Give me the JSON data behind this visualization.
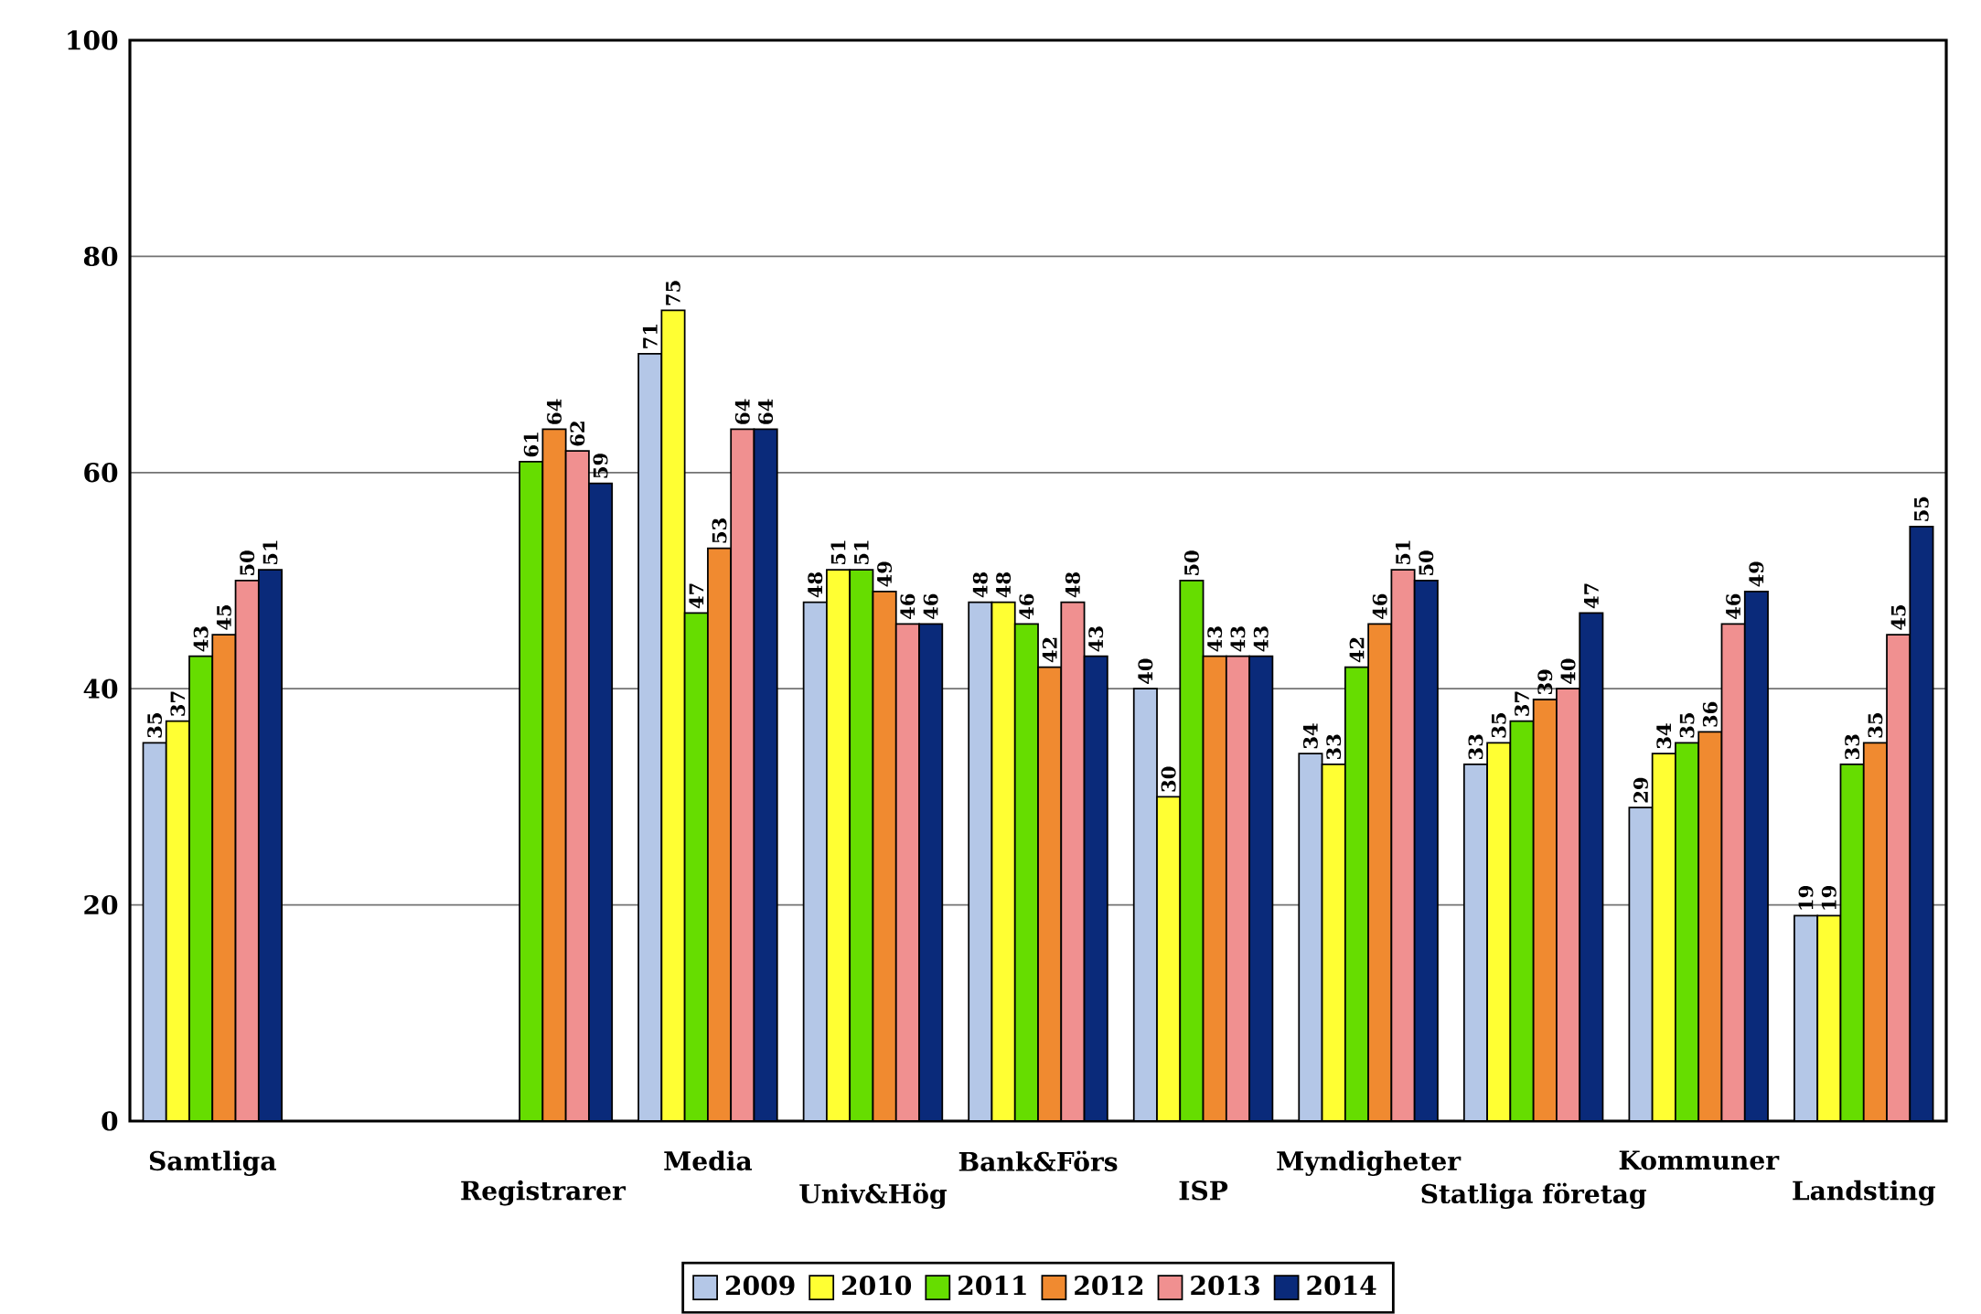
{
  "chart_data": {
    "type": "bar",
    "categories": [
      "Samtliga",
      null,
      "Registrarer",
      "Media",
      "Univ&Hög",
      "Bank&Förs",
      "ISP",
      "Myndigheter",
      "Statliga företag",
      "Kommuner",
      "Landsting"
    ],
    "series": [
      {
        "name": "2009",
        "color": "#b4c7e7",
        "values": [
          35,
          null,
          null,
          71,
          48,
          48,
          40,
          34,
          33,
          29,
          19
        ]
      },
      {
        "name": "2010",
        "color": "#ffff33",
        "values": [
          37,
          null,
          null,
          75,
          51,
          48,
          30,
          33,
          35,
          34,
          19
        ]
      },
      {
        "name": "2011",
        "color": "#66dd00",
        "values": [
          43,
          null,
          61,
          47,
          51,
          46,
          50,
          42,
          37,
          35,
          33
        ]
      },
      {
        "name": "2012",
        "color": "#f08a30",
        "values": [
          45,
          null,
          64,
          53,
          49,
          42,
          43,
          46,
          39,
          36,
          35
        ]
      },
      {
        "name": "2013",
        "color": "#f09090",
        "values": [
          50,
          null,
          62,
          64,
          46,
          48,
          43,
          51,
          40,
          46,
          45
        ]
      },
      {
        "name": "2014",
        "color": "#0a2a7a",
        "values": [
          51,
          null,
          59,
          64,
          46,
          43,
          43,
          50,
          47,
          49,
          55
        ]
      }
    ],
    "ylim": [
      0,
      100
    ],
    "yticks": [
      0,
      20,
      40,
      60,
      80,
      100
    ],
    "grid": "y",
    "legend": "bottom",
    "data_labels": true
  }
}
